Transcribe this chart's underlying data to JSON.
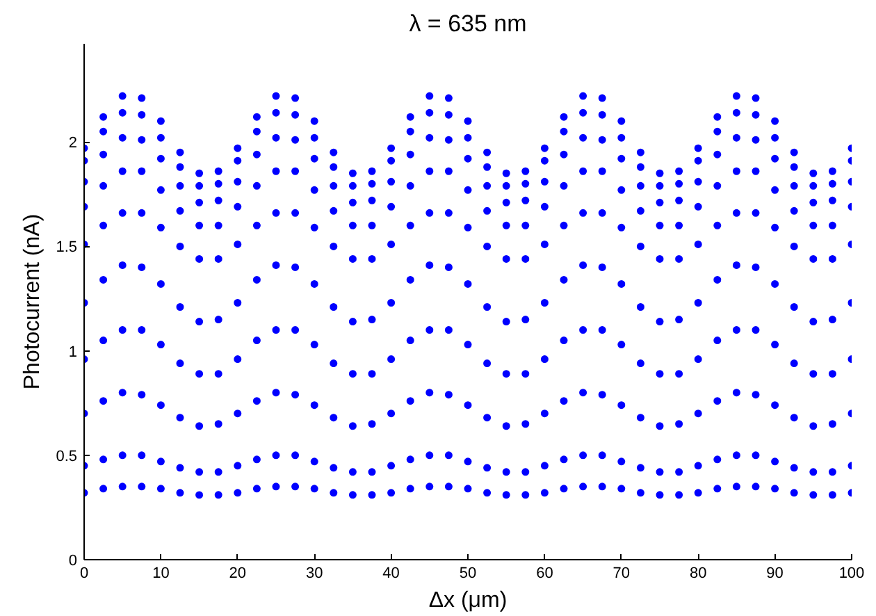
{
  "chart_data": {
    "type": "scatter",
    "title": "λ = 635 nm",
    "xlabel": "Δx (μm)",
    "ylabel": "Photocurrent (nA)",
    "x": [
      0,
      2.5,
      5,
      7.5,
      10,
      12.5,
      15,
      17.5,
      20,
      22.5,
      25,
      27.5,
      30,
      32.5,
      35,
      37.5,
      40,
      42.5,
      45,
      47.5,
      50,
      52.5,
      55,
      57.5,
      60,
      62.5,
      65,
      67.5,
      70,
      72.5,
      75,
      77.5,
      80,
      82.5,
      85,
      87.5,
      90,
      92.5,
      95,
      97.5,
      100
    ],
    "xlim": [
      0,
      100
    ],
    "xticks": [
      0,
      10,
      20,
      30,
      40,
      50,
      60,
      70,
      80,
      90,
      100
    ],
    "ylim": [
      0,
      2.47
    ],
    "yticks": [
      0,
      0.5,
      1,
      1.5,
      2
    ],
    "grid": false,
    "marker": "circle",
    "series": [
      {
        "color": "#0000ff",
        "values": [
          1.97,
          2.12,
          2.22,
          2.21,
          2.1,
          1.95,
          1.85,
          1.86,
          1.97,
          2.12,
          2.22,
          2.21,
          2.1,
          1.95,
          1.85,
          1.86,
          1.97,
          2.12,
          2.22,
          2.21,
          2.1,
          1.95,
          1.85,
          1.86,
          1.97,
          2.12,
          2.22,
          2.21,
          2.1,
          1.95,
          1.85,
          1.86,
          1.97,
          2.12,
          2.22,
          2.21,
          2.1,
          1.95,
          1.85,
          1.86,
          1.97
        ]
      },
      {
        "color": "#0000ff",
        "values": [
          1.91,
          2.05,
          2.14,
          2.13,
          2.02,
          1.88,
          1.79,
          1.8,
          1.91,
          2.05,
          2.14,
          2.13,
          2.02,
          1.88,
          1.79,
          1.8,
          1.91,
          2.05,
          2.14,
          2.13,
          2.02,
          1.88,
          1.79,
          1.8,
          1.91,
          2.05,
          2.14,
          2.13,
          2.02,
          1.88,
          1.79,
          1.8,
          1.91,
          2.05,
          2.14,
          2.13,
          2.02,
          1.88,
          1.79,
          1.8,
          1.91
        ]
      },
      {
        "color": "#0000ff",
        "values": [
          1.81,
          1.94,
          2.02,
          2.01,
          1.92,
          1.79,
          1.71,
          1.72,
          1.81,
          1.94,
          2.02,
          2.01,
          1.92,
          1.79,
          1.71,
          1.72,
          1.81,
          1.94,
          2.02,
          2.01,
          1.92,
          1.79,
          1.71,
          1.72,
          1.81,
          1.94,
          2.02,
          2.01,
          1.92,
          1.79,
          1.71,
          1.72,
          1.81,
          1.94,
          2.02,
          2.01,
          1.92,
          1.79,
          1.71,
          1.72,
          1.81
        ]
      },
      {
        "color": "#0000ff",
        "values": [
          1.69,
          1.79,
          1.86,
          1.86,
          1.77,
          1.67,
          1.6,
          1.6,
          1.69,
          1.79,
          1.86,
          1.86,
          1.77,
          1.67,
          1.6,
          1.6,
          1.69,
          1.79,
          1.86,
          1.86,
          1.77,
          1.67,
          1.6,
          1.6,
          1.69,
          1.79,
          1.86,
          1.86,
          1.77,
          1.67,
          1.6,
          1.6,
          1.69,
          1.79,
          1.86,
          1.86,
          1.77,
          1.67,
          1.6,
          1.6,
          1.69
        ]
      },
      {
        "color": "#0000ff",
        "values": [
          1.51,
          1.6,
          1.66,
          1.66,
          1.59,
          1.5,
          1.44,
          1.44,
          1.51,
          1.6,
          1.66,
          1.66,
          1.59,
          1.5,
          1.44,
          1.44,
          1.51,
          1.6,
          1.66,
          1.66,
          1.59,
          1.5,
          1.44,
          1.44,
          1.51,
          1.6,
          1.66,
          1.66,
          1.59,
          1.5,
          1.44,
          1.44,
          1.51,
          1.6,
          1.66,
          1.66,
          1.59,
          1.5,
          1.44,
          1.44,
          1.51
        ]
      },
      {
        "color": "#0000ff",
        "values": [
          1.23,
          1.34,
          1.41,
          1.4,
          1.32,
          1.21,
          1.14,
          1.15,
          1.23,
          1.34,
          1.41,
          1.4,
          1.32,
          1.21,
          1.14,
          1.15,
          1.23,
          1.34,
          1.41,
          1.4,
          1.32,
          1.21,
          1.14,
          1.15,
          1.23,
          1.34,
          1.41,
          1.4,
          1.32,
          1.21,
          1.14,
          1.15,
          1.23,
          1.34,
          1.41,
          1.4,
          1.32,
          1.21,
          1.14,
          1.15,
          1.23
        ]
      },
      {
        "color": "#0000ff",
        "values": [
          0.96,
          1.05,
          1.1,
          1.1,
          1.03,
          0.94,
          0.89,
          0.89,
          0.96,
          1.05,
          1.1,
          1.1,
          1.03,
          0.94,
          0.89,
          0.89,
          0.96,
          1.05,
          1.1,
          1.1,
          1.03,
          0.94,
          0.89,
          0.89,
          0.96,
          1.05,
          1.1,
          1.1,
          1.03,
          0.94,
          0.89,
          0.89,
          0.96,
          1.05,
          1.1,
          1.1,
          1.03,
          0.94,
          0.89,
          0.89,
          0.96
        ]
      },
      {
        "color": "#0000ff",
        "values": [
          0.7,
          0.76,
          0.8,
          0.79,
          0.74,
          0.68,
          0.64,
          0.65,
          0.7,
          0.76,
          0.8,
          0.79,
          0.74,
          0.68,
          0.64,
          0.65,
          0.7,
          0.76,
          0.8,
          0.79,
          0.74,
          0.68,
          0.64,
          0.65,
          0.7,
          0.76,
          0.8,
          0.79,
          0.74,
          0.68,
          0.64,
          0.65,
          0.7,
          0.76,
          0.8,
          0.79,
          0.74,
          0.68,
          0.64,
          0.65,
          0.7
        ]
      },
      {
        "color": "#0000ff",
        "values": [
          0.45,
          0.48,
          0.5,
          0.5,
          0.47,
          0.44,
          0.42,
          0.42,
          0.45,
          0.48,
          0.5,
          0.5,
          0.47,
          0.44,
          0.42,
          0.42,
          0.45,
          0.48,
          0.5,
          0.5,
          0.47,
          0.44,
          0.42,
          0.42,
          0.45,
          0.48,
          0.5,
          0.5,
          0.47,
          0.44,
          0.42,
          0.42,
          0.45,
          0.48,
          0.5,
          0.5,
          0.47,
          0.44,
          0.42,
          0.42,
          0.45
        ]
      },
      {
        "color": "#0000ff",
        "values": [
          0.32,
          0.34,
          0.35,
          0.35,
          0.34,
          0.32,
          0.31,
          0.31,
          0.32,
          0.34,
          0.35,
          0.35,
          0.34,
          0.32,
          0.31,
          0.31,
          0.32,
          0.34,
          0.35,
          0.35,
          0.34,
          0.32,
          0.31,
          0.31,
          0.32,
          0.34,
          0.35,
          0.35,
          0.34,
          0.32,
          0.31,
          0.31,
          0.32,
          0.34,
          0.35,
          0.35,
          0.34,
          0.32,
          0.31,
          0.31,
          0.32
        ]
      }
    ]
  }
}
